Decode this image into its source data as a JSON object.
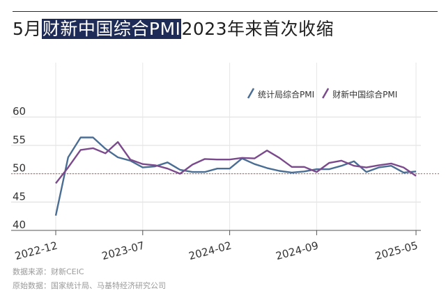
{
  "header": {
    "title_prefix": "5月",
    "title_highlight": "财新中国综合PMI",
    "title_suffix": "2023年来首次收缩"
  },
  "footer": {
    "source_line": "数据来源：财新CEIC",
    "original_line": "原始数据：国家统计局、马基特经济研究公司"
  },
  "chart_data": {
    "type": "line",
    "title": "",
    "xlabel": "",
    "ylabel": "",
    "x_ticks": [
      "2022-12",
      "2023-07",
      "2024-02",
      "2024-09",
      "2025-05"
    ],
    "x_tick_index": [
      0,
      7,
      14,
      21,
      29
    ],
    "yticks": [
      40,
      45,
      50,
      55,
      60
    ],
    "ylim": [
      40,
      61
    ],
    "reference_line": 50,
    "grid": true,
    "legend_position": "top-right",
    "series": [
      {
        "name": "统计局综合PMI",
        "color": "#4a6d93",
        "values": [
          42.6,
          52.9,
          56.4,
          56.4,
          54.4,
          52.9,
          52.3,
          51.1,
          51.3,
          52.0,
          50.7,
          50.3,
          50.3,
          50.9,
          50.9,
          52.7,
          51.7,
          51.0,
          50.5,
          50.2,
          50.4,
          50.8,
          50.8,
          51.4,
          52.2,
          50.3,
          51.1,
          51.4,
          50.2,
          50.4
        ]
      },
      {
        "name": "财新中国综合PMI",
        "color": "#7b4a8c",
        "values": [
          48.3,
          51.1,
          54.2,
          54.5,
          53.6,
          55.6,
          52.5,
          51.7,
          51.5,
          50.9,
          50.0,
          51.6,
          52.6,
          52.5,
          52.5,
          52.8,
          52.7,
          54.1,
          52.8,
          51.2,
          51.2,
          50.3,
          51.9,
          52.3,
          51.4,
          51.1,
          51.5,
          51.8,
          51.1,
          49.6
        ]
      }
    ]
  }
}
